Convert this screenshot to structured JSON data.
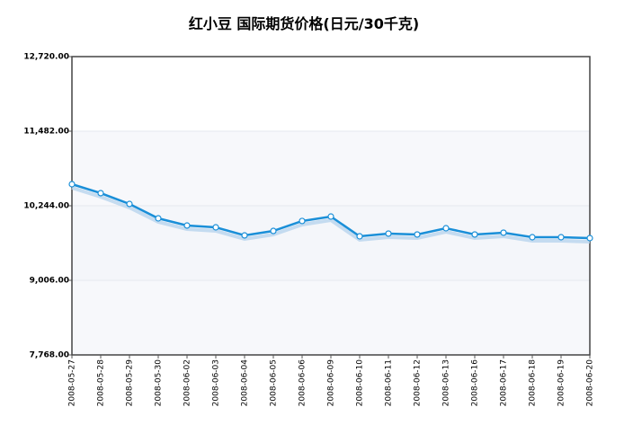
{
  "chart_data": {
    "type": "line",
    "title": "红小豆 国际期货价格(日元/30千克)",
    "categories": [
      "2008-05-27",
      "2008-05-28",
      "2008-05-29",
      "2008-05-30",
      "2008-06-02",
      "2008-06-03",
      "2008-06-04",
      "2008-06-05",
      "2008-06-06",
      "2008-06-09",
      "2008-06-10",
      "2008-06-11",
      "2008-06-12",
      "2008-06-13",
      "2008-06-16",
      "2008-06-17",
      "2008-06-18",
      "2008-06-19",
      "2008-06-20"
    ],
    "values": [
      10602,
      10453,
      10274,
      10035,
      9916,
      9886,
      9752,
      9826,
      9991,
      10065,
      9737,
      9782,
      9767,
      9871,
      9767,
      9797,
      9722,
      9722,
      9707
    ],
    "color": "#1a8fd8",
    "ylim": [
      7768,
      12720
    ],
    "yticks": [
      {
        "value": 7768,
        "label": "7,768.00"
      },
      {
        "value": 9006,
        "label": "9,006.00"
      },
      {
        "value": 10244,
        "label": "10,244.00"
      },
      {
        "value": 11482,
        "label": "11,482.00"
      },
      {
        "value": 12720,
        "label": "12,720.00"
      }
    ],
    "grid": true
  }
}
